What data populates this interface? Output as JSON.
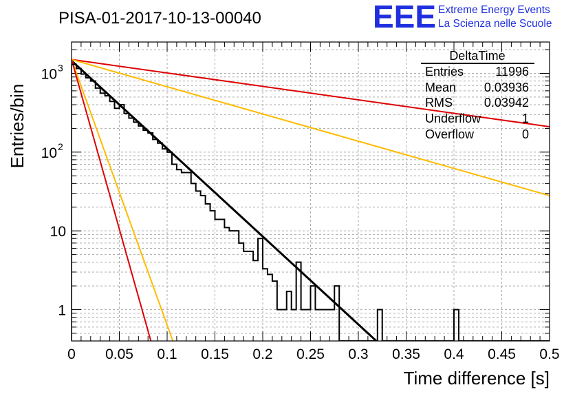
{
  "header": {
    "run_title": "PISA-01-2017-10-13-00040",
    "logo_letters": "EEE",
    "logo_line1": "Extreme Energy Events",
    "logo_line2": "La Scienza nelle Scuole",
    "brand_color": "#1f2fe0"
  },
  "stats": {
    "title": "DeltaTime",
    "rows": [
      {
        "label": "Entries",
        "value": "11996"
      },
      {
        "label": "Mean",
        "value": "0.03936"
      },
      {
        "label": "RMS",
        "value": "0.03942"
      },
      {
        "label": "Underflow",
        "value": "1"
      },
      {
        "label": "Overflow",
        "value": "0"
      }
    ]
  },
  "chart_data": {
    "type": "line",
    "title": "PISA-01-2017-10-13-00040",
    "xlabel": "Time difference [s]",
    "ylabel": "Entries/bin",
    "xlim": [
      0,
      0.5
    ],
    "ylim": [
      0.4,
      2500
    ],
    "y_scale": "log",
    "grid": true,
    "x_ticks": [
      "0",
      "0.05",
      "0.1",
      "0.15",
      "0.2",
      "0.25",
      "0.3",
      "0.35",
      "0.4",
      "0.45",
      "0.5"
    ],
    "y_ticks": [
      {
        "value": 1,
        "label": "1"
      },
      {
        "value": 10,
        "label": "10"
      },
      {
        "value": 100,
        "label": "10",
        "exp": "2"
      },
      {
        "value": 1000,
        "label": "10",
        "exp": "3"
      }
    ],
    "histogram": {
      "bin_width": 0.005,
      "color": "#000000",
      "values": [
        1300,
        1150,
        980,
        880,
        800,
        650,
        560,
        520,
        440,
        360,
        400,
        310,
        270,
        240,
        215,
        190,
        175,
        145,
        130,
        110,
        100,
        70,
        60,
        55,
        55,
        40,
        32,
        28,
        22,
        18,
        14,
        14,
        11,
        10,
        10,
        7,
        5.5,
        5.5,
        4.2,
        8,
        3.3,
        2.8,
        2.3,
        1,
        1,
        1.7,
        1,
        4,
        1,
        1,
        2,
        1,
        1,
        1,
        1,
        2,
        0.1,
        0.1,
        0.1,
        0.1,
        0.1,
        0.1,
        0.1,
        0.1,
        1,
        0.1,
        0.1,
        0.1,
        0.1,
        0.1,
        0.1,
        0.1,
        0.1,
        0.1,
        0.1,
        0.1,
        0.1,
        0.1,
        0.1,
        0.1,
        1,
        0.1,
        0.1,
        0.1,
        0.1,
        0.1,
        0.1,
        0.1,
        0.1,
        0.1,
        0.1,
        0.1,
        0.1,
        0.1,
        0.1,
        0.1,
        0.1,
        0.1,
        0.1,
        0.1
      ]
    },
    "series": [
      {
        "kind": "fit",
        "color": "#000000",
        "x": [
          0,
          0.33
        ],
        "y": [
          1450,
          0.3
        ]
      },
      {
        "kind": "band",
        "color": "#dd0000",
        "x": [
          0,
          0.5
        ],
        "y": [
          1500,
          210
        ]
      },
      {
        "kind": "band",
        "color": "#ffbb00",
        "x": [
          0,
          0.5
        ],
        "y": [
          1500,
          28
        ]
      },
      {
        "kind": "band",
        "color": "#ffbb00",
        "x": [
          0,
          0.106
        ],
        "y": [
          1500,
          0.4
        ]
      },
      {
        "kind": "band",
        "color": "#dd0000",
        "x": [
          0,
          0.083
        ],
        "y": [
          1500,
          0.4
        ]
      }
    ]
  }
}
